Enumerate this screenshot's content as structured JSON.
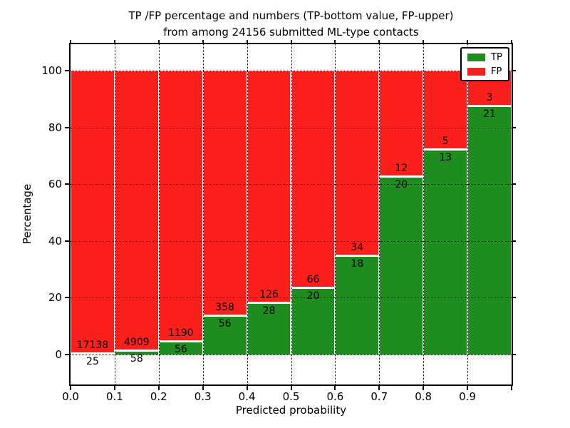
{
  "title": {
    "line1": "TP /FP percentage and numbers (TP-bottom value, FP-upper)",
    "line2": "from among 24156 submitted ML-type contacts"
  },
  "chart_data": {
    "type": "bar",
    "stacked": true,
    "title": "TP /FP percentage and numbers (TP-bottom value, FP-upper) from among 24156 submitted ML-type contacts",
    "xlabel": "Predicted probability",
    "ylabel": "Percentage",
    "total_contacts": 24156,
    "x_bin_edges": [
      0.0,
      0.1,
      0.2,
      0.3,
      0.4,
      0.5,
      0.6,
      0.7,
      0.8,
      0.9,
      1.0
    ],
    "x_tick_labels": [
      "0.0",
      "0.1",
      "0.2",
      "0.3",
      "0.4",
      "0.5",
      "0.6",
      "0.7",
      "0.8",
      "0.9"
    ],
    "y_ticks": [
      0,
      20,
      40,
      60,
      80,
      100
    ],
    "ylim": [
      -11,
      110
    ],
    "xlim": [
      0.0,
      1.0
    ],
    "grid": true,
    "series": [
      {
        "name": "TP",
        "color": "#1e8c1e",
        "counts": [
          25,
          58,
          56,
          56,
          28,
          20,
          18,
          20,
          13,
          21
        ],
        "percent": [
          0.15,
          1.17,
          4.49,
          13.53,
          18.18,
          23.26,
          34.62,
          62.5,
          72.22,
          87.5
        ]
      },
      {
        "name": "FP",
        "color": "#fb201c",
        "counts": [
          17138,
          4909,
          1190,
          358,
          126,
          66,
          34,
          12,
          5,
          3
        ],
        "percent": [
          99.85,
          98.83,
          95.51,
          86.47,
          81.82,
          76.74,
          65.38,
          37.5,
          27.78,
          12.5
        ]
      }
    ],
    "legend": {
      "position": "upper right",
      "entries": [
        {
          "label": "TP",
          "color": "#1e8c1e"
        },
        {
          "label": "FP",
          "color": "#fb201c"
        }
      ]
    }
  }
}
